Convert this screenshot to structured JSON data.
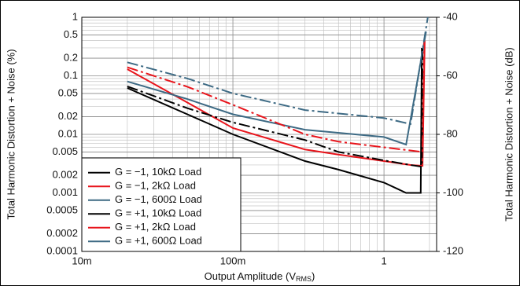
{
  "chart_data": {
    "type": "line",
    "x_label": {
      "text": "Output Amplitude (V",
      "sub": "RMS",
      "end": ")"
    },
    "y_label": "Total Harmonic Distortion + Noise (%)",
    "y2_label": "Total Harmonic Distortion + Noise (dB)",
    "xlog": true,
    "ylog": true,
    "grid": true,
    "legend": "lower-left",
    "xlim": [
      0.01,
      2.23
    ],
    "xticks": [
      {
        "value": 0.01,
        "label": "10m"
      },
      {
        "value": 0.1,
        "label": "100m"
      },
      1
    ],
    "ylim": [
      0.0001,
      1
    ],
    "yticks": [
      0.0001,
      0.0002,
      0.0005,
      0.001,
      0.002,
      0.005,
      0.01,
      0.02,
      0.05,
      0.1,
      0.2,
      0.5,
      1
    ],
    "y2lim": [
      -120,
      -40
    ],
    "y2ticks": [
      -120,
      -100,
      -80,
      -60,
      -40
    ],
    "series": [
      {
        "name": "G = −1, 10kΩ Load",
        "color": "#000000",
        "dash": "solid",
        "x": [
          0.02,
          0.05,
          0.1,
          0.3,
          0.5,
          1,
          1.4,
          1.75,
          1.78
        ],
        "values": [
          0.062,
          0.022,
          0.01,
          0.0035,
          0.0025,
          0.0015,
          0.001,
          0.001,
          0.3
        ]
      },
      {
        "name": "G = −1, 2kΩ Load",
        "color": "#e8141b",
        "dash": "solid",
        "x": [
          0.02,
          0.05,
          0.1,
          0.3,
          0.5,
          1,
          1.5,
          1.8,
          1.86
        ],
        "values": [
          0.13,
          0.035,
          0.0128,
          0.0055,
          0.0045,
          0.0035,
          0.003,
          0.0029,
          0.4
        ]
      },
      {
        "name": "G = −1, 600Ω Load",
        "color": "#3d6a84",
        "dash": "solid",
        "x": [
          0.02,
          0.05,
          0.1,
          0.3,
          1,
          1.4,
          1.9
        ],
        "values": [
          0.08,
          0.04,
          0.022,
          0.012,
          0.009,
          0.0067,
          0.57
        ]
      },
      {
        "name": "G = +1, 10kΩ Load",
        "color": "#000000",
        "dash": "dashdot",
        "x": [
          0.02,
          0.05,
          0.1,
          0.3,
          0.5,
          1,
          1.5,
          1.78,
          1.8
        ],
        "values": [
          0.066,
          0.028,
          0.016,
          0.008,
          0.005,
          0.0036,
          0.003,
          0.0028,
          0.3
        ]
      },
      {
        "name": "G = +1, 2kΩ Load",
        "color": "#e8141b",
        "dash": "dashdot",
        "x": [
          0.02,
          0.05,
          0.1,
          0.3,
          0.5,
          1,
          1.8,
          1.85
        ],
        "values": [
          0.14,
          0.065,
          0.032,
          0.01,
          0.0075,
          0.006,
          0.005,
          0.4
        ]
      },
      {
        "name": "G = +1, 600Ω Load",
        "color": "#3d6a84",
        "dash": "dashdot",
        "x": [
          0.02,
          0.05,
          0.1,
          0.3,
          1,
          1.5,
          1.95
        ],
        "values": [
          0.17,
          0.09,
          0.05,
          0.026,
          0.019,
          0.015,
          1
        ]
      }
    ]
  }
}
